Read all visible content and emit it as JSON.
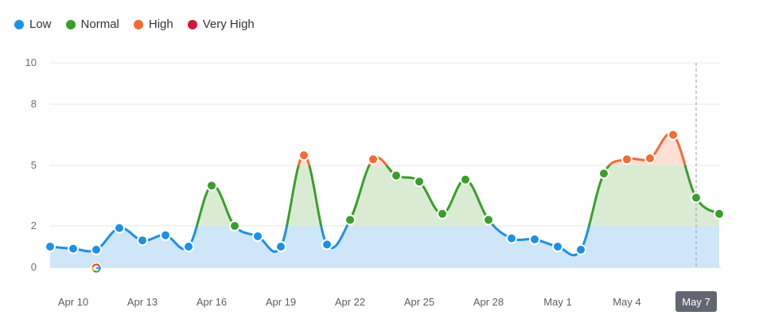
{
  "legend": [
    {
      "label": "Low",
      "color": "#1e90e6"
    },
    {
      "label": "Normal",
      "color": "#3a9e2b"
    },
    {
      "label": "High",
      "color": "#f26c35"
    },
    {
      "label": "Very High",
      "color": "#d4143a"
    }
  ],
  "chart_data": {
    "type": "area",
    "y_ticks": [
      0,
      2,
      5,
      8,
      10
    ],
    "x_ticks": [
      "Apr 10",
      "Apr 13",
      "Apr 16",
      "Apr 19",
      "Apr 22",
      "Apr 25",
      "Apr 28",
      "May 1",
      "May 4",
      "May 7"
    ],
    "x": [
      "Apr 9",
      "Apr 10",
      "Apr 11",
      "Apr 12",
      "Apr 13",
      "Apr 14",
      "Apr 15",
      "Apr 16",
      "Apr 17",
      "Apr 18",
      "Apr 19",
      "Apr 20",
      "Apr 21",
      "Apr 22",
      "Apr 23",
      "Apr 24",
      "Apr 25",
      "Apr 26",
      "Apr 27",
      "Apr 28",
      "Apr 29",
      "Apr 30",
      "May 1",
      "May 2",
      "May 3",
      "May 4",
      "May 5",
      "May 6",
      "May 7",
      "May 8"
    ],
    "values": [
      1.0,
      0.9,
      0.85,
      1.9,
      1.3,
      1.55,
      1.0,
      4.0,
      2.0,
      1.5,
      1.0,
      5.5,
      1.1,
      2.3,
      5.3,
      4.5,
      4.2,
      2.6,
      4.3,
      2.3,
      1.4,
      1.35,
      1.0,
      0.85,
      4.6,
      5.3,
      5.35,
      6.5,
      3.4,
      2.6
    ],
    "thresholds": {
      "low_max": 2,
      "normal_max": 5
    },
    "highlight": "May 7",
    "google_marker": "Apr 11",
    "colors": {
      "low_line": "#1e90e6",
      "low_fill": "#cfe6f9",
      "normal_line": "#3a9e2b",
      "normal_fill": "#d9ecd3",
      "high_line": "#f26c35",
      "high_fill": "#fde0d4",
      "grid": "#e6e7ea",
      "highlight_line": "#a7abb3",
      "badge_bg": "#626670"
    }
  }
}
